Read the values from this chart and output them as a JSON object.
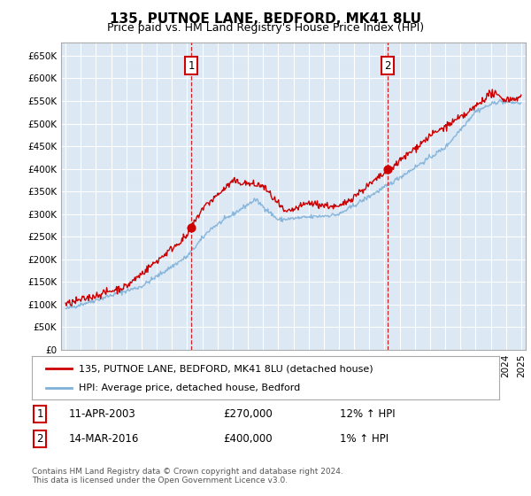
{
  "title": "135, PUTNOE LANE, BEDFORD, MK41 8LU",
  "subtitle": "Price paid vs. HM Land Registry's House Price Index (HPI)",
  "ylabel_ticks": [
    "£0",
    "£50K",
    "£100K",
    "£150K",
    "£200K",
    "£250K",
    "£300K",
    "£350K",
    "£400K",
    "£450K",
    "£500K",
    "£550K",
    "£600K",
    "£650K"
  ],
  "ytick_vals": [
    0,
    50000,
    100000,
    150000,
    200000,
    250000,
    300000,
    350000,
    400000,
    450000,
    500000,
    550000,
    600000,
    650000
  ],
  "ylim": [
    0,
    680000
  ],
  "bg_color": "#dce9f5",
  "grid_color": "#ffffff",
  "line_color_red": "#cc0000",
  "line_color_blue": "#7fb0d8",
  "marker1_x": 2003.27,
  "marker2_x": 2016.2,
  "legend_label1": "135, PUTNOE LANE, BEDFORD, MK41 8LU (detached house)",
  "legend_label2": "HPI: Average price, detached house, Bedford",
  "annotation1": [
    "1",
    "11-APR-2003",
    "£270,000",
    "12% ↑ HPI"
  ],
  "annotation2": [
    "2",
    "14-MAR-2016",
    "£400,000",
    "1% ↑ HPI"
  ],
  "footnote": "Contains HM Land Registry data © Crown copyright and database right 2024.\nThis data is licensed under the Open Government Licence v3.0.",
  "xmin": 1994.7,
  "xmax": 2025.3
}
